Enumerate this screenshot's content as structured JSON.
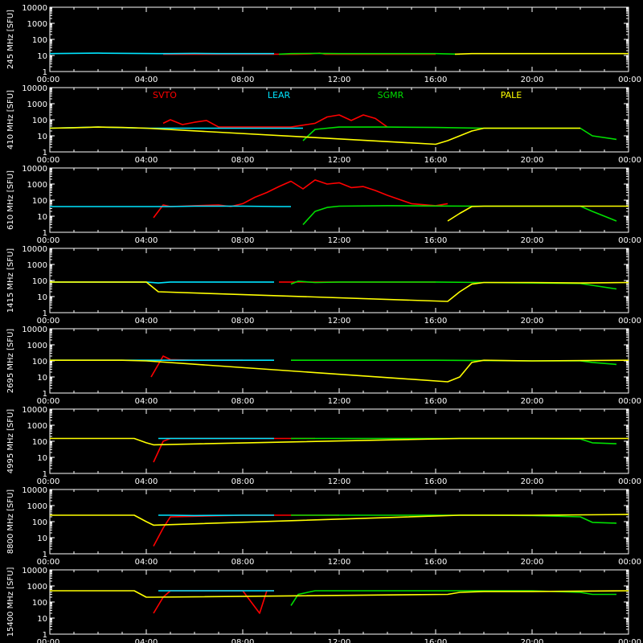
{
  "chart_data": [
    {
      "type": "line",
      "ylabel": "245 MHz  [SFU]",
      "ylog": true,
      "ylim": [
        1,
        10000
      ],
      "yticks": [
        "1",
        "10",
        "100",
        "1000",
        "10000"
      ],
      "xlim": [
        0,
        24
      ],
      "xticks": [
        "00:00",
        "04:00",
        "08:00",
        "12:00",
        "16:00",
        "20:00",
        "00:00"
      ],
      "series": [
        {
          "name": "",
          "color": "#ff0000",
          "x": [
            4.7,
            5.5,
            7,
            9.5,
            10.2,
            10.8,
            11.2,
            11.4,
            12,
            14,
            16
          ],
          "y": [
            12,
            12,
            12,
            12,
            12,
            12.5,
            14,
            12,
            12,
            12,
            12
          ]
        },
        {
          "name": "",
          "color": "#00e5ff",
          "x": [
            0,
            2,
            4.5,
            5,
            6,
            7,
            8,
            9,
            9.3
          ],
          "y": [
            13,
            14,
            13,
            13,
            13.5,
            13,
            13,
            13,
            13
          ]
        },
        {
          "name": "",
          "color": "#00e000",
          "x": [
            9.5,
            10,
            11,
            12,
            14,
            16,
            17
          ],
          "y": [
            12,
            13,
            13.5,
            13,
            13,
            13,
            12
          ]
        },
        {
          "name": "",
          "color": "#ffff00",
          "x": [
            16.8,
            17.5,
            18,
            20,
            22,
            23,
            24
          ],
          "y": [
            12,
            13,
            13,
            13,
            13,
            13,
            13
          ]
        }
      ]
    },
    {
      "type": "line",
      "ylabel": "410 MHz  [SFU]",
      "ylog": true,
      "ylim": [
        1,
        10000
      ],
      "yticks": [
        "1",
        "10",
        "100",
        "1000",
        "10000"
      ],
      "xlim": [
        0,
        24
      ],
      "xticks": [
        "00:00",
        "04:00",
        "08:00",
        "12:00",
        "16:00",
        "20:00",
        "00:00"
      ],
      "legend": [
        {
          "label": "SVTO",
          "color": "#ff0000"
        },
        {
          "label": "LEAR",
          "color": "#00e5ff"
        },
        {
          "label": "SGMR",
          "color": "#00e000"
        },
        {
          "label": "PALE",
          "color": "#ffff00"
        }
      ],
      "series": [
        {
          "name": "SVTO",
          "color": "#ff0000",
          "x": [
            4.7,
            5,
            5.5,
            6,
            6.5,
            7,
            8,
            9,
            10,
            11,
            11.5,
            12,
            12.5,
            13,
            13.5,
            14
          ],
          "y": [
            60,
            100,
            50,
            70,
            90,
            35,
            35,
            35,
            35,
            60,
            150,
            200,
            90,
            200,
            120,
            35
          ]
        },
        {
          "name": "LEAR",
          "color": "#00e5ff",
          "x": [
            0,
            2,
            4,
            4.5,
            5,
            6,
            8,
            9.5,
            10.5
          ],
          "y": [
            30,
            35,
            30,
            30,
            30,
            30,
            30,
            30,
            30
          ]
        },
        {
          "name": "SGMR",
          "color": "#00e000",
          "x": [
            10.5,
            11,
            11.5,
            12,
            14,
            16,
            18,
            20,
            22,
            22.5,
            23.5
          ],
          "y": [
            5,
            25,
            30,
            35,
            35,
            33,
            30,
            30,
            30,
            10,
            6
          ]
        },
        {
          "name": "PALE",
          "color": "#ffff00",
          "x": [
            0,
            1,
            2,
            3,
            4,
            16,
            16.5,
            17.5,
            18,
            20,
            22
          ],
          "y": [
            30,
            32,
            35,
            33,
            30,
            3,
            5,
            20,
            30,
            30,
            30
          ]
        }
      ]
    },
    {
      "type": "line",
      "ylabel": "610 MHz  [SFU]",
      "ylog": true,
      "ylim": [
        1,
        10000
      ],
      "yticks": [
        "1",
        "10",
        "100",
        "1000",
        "10000"
      ],
      "xlim": [
        0,
        24
      ],
      "xticks": [
        "00:00",
        "04:00",
        "08:00",
        "12:00",
        "16:00",
        "20:00",
        "00:00"
      ],
      "series": [
        {
          "name": "",
          "color": "#ff0000",
          "x": [
            4.3,
            4.7,
            5,
            6,
            7,
            7.5,
            8,
            8.5,
            9,
            9.5,
            10,
            10.5,
            11,
            11.5,
            12,
            12.5,
            13,
            13.5,
            14,
            15,
            16,
            16.5
          ],
          "y": [
            8,
            50,
            40,
            45,
            50,
            40,
            60,
            150,
            300,
            700,
            1500,
            500,
            1800,
            1000,
            1200,
            600,
            700,
            400,
            200,
            60,
            45,
            60
          ]
        },
        {
          "name": "",
          "color": "#00e5ff",
          "x": [
            0,
            2,
            4,
            5,
            6,
            8,
            9.5,
            10
          ],
          "y": [
            40,
            40,
            40,
            40,
            42,
            42,
            40,
            40
          ]
        },
        {
          "name": "",
          "color": "#00e000",
          "x": [
            10.5,
            11,
            11.5,
            12,
            14,
            16,
            18,
            20,
            22,
            22.5,
            23.5
          ],
          "y": [
            3,
            20,
            35,
            42,
            45,
            43,
            42,
            42,
            42,
            20,
            5
          ]
        },
        {
          "name": "",
          "color": "#ffff00",
          "x": [
            16.5,
            17,
            17.5,
            18,
            20,
            22,
            24
          ],
          "y": [
            5,
            15,
            40,
            42,
            42,
            42,
            42
          ]
        }
      ]
    },
    {
      "type": "line",
      "ylabel": "1415 MHz  [SFU]",
      "ylog": true,
      "ylim": [
        1,
        10000
      ],
      "yticks": [
        "1",
        "10",
        "100",
        "1000",
        "10000"
      ],
      "xlim": [
        0,
        24
      ],
      "xticks": [
        "00:00",
        "04:00",
        "08:00",
        "12:00",
        "16:00",
        "20:00",
        "00:00"
      ],
      "series": [
        {
          "name": "",
          "color": "#ff0000",
          "x": [
            9.5,
            10.5,
            12,
            14,
            16
          ],
          "y": [
            80,
            80,
            80,
            80,
            80
          ]
        },
        {
          "name": "",
          "color": "#00e5ff",
          "x": [
            0,
            2,
            4,
            4.5,
            5,
            6,
            8,
            9.3
          ],
          "y": [
            80,
            80,
            80,
            70,
            80,
            80,
            80,
            80
          ]
        },
        {
          "name": "",
          "color": "#00e000",
          "x": [
            10,
            10.3,
            11,
            12,
            14,
            16,
            18,
            20,
            22,
            22.5,
            23.5
          ],
          "y": [
            60,
            90,
            75,
            80,
            80,
            80,
            75,
            70,
            65,
            50,
            30
          ]
        },
        {
          "name": "",
          "color": "#ffff00",
          "x": [
            0,
            3,
            4,
            4.5,
            16.5,
            17,
            17.5,
            18,
            20,
            22,
            24
          ],
          "y": [
            80,
            80,
            80,
            20,
            5,
            20,
            60,
            75,
            75,
            70,
            75
          ]
        }
      ]
    },
    {
      "type": "line",
      "ylabel": "2695 MHz  [SFU]",
      "ylog": true,
      "ylim": [
        1,
        10000
      ],
      "yticks": [
        "1",
        "10",
        "100",
        "1000",
        "10000"
      ],
      "xlim": [
        0,
        24
      ],
      "xticks": [
        "00:00",
        "04:00",
        "08:00",
        "12:00",
        "16:00",
        "20:00",
        "00:00"
      ],
      "series": [
        {
          "name": "",
          "color": "#ff0000",
          "x": [
            4.2,
            4.5,
            4.7,
            5,
            6,
            7,
            8
          ],
          "y": [
            10,
            60,
            200,
            120,
            110,
            110,
            110
          ]
        },
        {
          "name": "",
          "color": "#00e5ff",
          "x": [
            0,
            2,
            4,
            5,
            6,
            8,
            9.3
          ],
          "y": [
            110,
            110,
            110,
            110,
            110,
            110,
            110
          ]
        },
        {
          "name": "",
          "color": "#00e000",
          "x": [
            10,
            11,
            12,
            14,
            16,
            18,
            20,
            22,
            22.5,
            23.5
          ],
          "y": [
            110,
            110,
            110,
            110,
            110,
            105,
            100,
            100,
            80,
            60
          ]
        },
        {
          "name": "",
          "color": "#ffff00",
          "x": [
            0,
            3,
            4,
            16.5,
            17,
            17.5,
            18,
            20,
            24
          ],
          "y": [
            110,
            110,
            100,
            5,
            10,
            80,
            110,
            100,
            110
          ]
        }
      ]
    },
    {
      "type": "line",
      "ylabel": "4995 MHz  [SFU]",
      "ylog": true,
      "ylim": [
        1,
        10000
      ],
      "yticks": [
        "1",
        "10",
        "100",
        "1000",
        "10000"
      ],
      "xlim": [
        0,
        24
      ],
      "xticks": [
        "00:00",
        "04:00",
        "08:00",
        "12:00",
        "16:00",
        "20:00",
        "00:00"
      ],
      "series": [
        {
          "name": "",
          "color": "#ff0000",
          "x": [
            4.3,
            4.7,
            5,
            8,
            10,
            11
          ],
          "y": [
            5,
            100,
            150,
            150,
            150,
            150
          ]
        },
        {
          "name": "",
          "color": "#00e5ff",
          "x": [
            4.5,
            5,
            6,
            8,
            9.3
          ],
          "y": [
            150,
            150,
            150,
            150,
            150
          ]
        },
        {
          "name": "",
          "color": "#00e000",
          "x": [
            10,
            11,
            12,
            14,
            16,
            18,
            20,
            22,
            22.5,
            23.5
          ],
          "y": [
            150,
            150,
            150,
            150,
            150,
            150,
            150,
            140,
            80,
            70
          ]
        },
        {
          "name": "",
          "color": "#ffff00",
          "x": [
            0,
            2,
            3.5,
            4,
            4.3,
            17,
            18,
            20,
            24
          ],
          "y": [
            150,
            150,
            150,
            80,
            60,
            150,
            150,
            150,
            150
          ]
        }
      ]
    },
    {
      "type": "line",
      "ylabel": "8800 MHz  [SFU]",
      "ylog": true,
      "ylim": [
        1,
        10000
      ],
      "yticks": [
        "1",
        "10",
        "100",
        "1000",
        "10000"
      ],
      "xlim": [
        0,
        24
      ],
      "xticks": [
        "00:00",
        "04:00",
        "08:00",
        "12:00",
        "16:00",
        "20:00",
        "00:00"
      ],
      "series": [
        {
          "name": "",
          "color": "#ff0000",
          "x": [
            4.3,
            4.7,
            5,
            8,
            10,
            12
          ],
          "y": [
            3,
            40,
            200,
            250,
            250,
            250
          ]
        },
        {
          "name": "",
          "color": "#00e5ff",
          "x": [
            4.5,
            5,
            6,
            8,
            9.3
          ],
          "y": [
            250,
            250,
            240,
            250,
            250
          ]
        },
        {
          "name": "",
          "color": "#00e000",
          "x": [
            10,
            11,
            12,
            14,
            16,
            18,
            20,
            22,
            22.5,
            23.5
          ],
          "y": [
            250,
            250,
            250,
            250,
            250,
            250,
            240,
            200,
            90,
            80
          ]
        },
        {
          "name": "",
          "color": "#ffff00",
          "x": [
            0,
            2,
            3.5,
            4,
            4.3,
            17,
            18,
            20,
            24
          ],
          "y": [
            250,
            250,
            250,
            100,
            60,
            250,
            250,
            250,
            280
          ]
        }
      ]
    },
    {
      "type": "line",
      "ylabel": "15400 MHz  [SFU]",
      "ylog": true,
      "ylim": [
        1,
        10000
      ],
      "yticks": [
        "1",
        "10",
        "100",
        "1000",
        "10000"
      ],
      "xlim": [
        0,
        24
      ],
      "xticks": [
        "00:00",
        "04:00",
        "08:00",
        "12:00",
        "16:00",
        "20:00",
        "00:00"
      ],
      "series": [
        {
          "name": "",
          "color": "#ff0000",
          "x": [
            4.3,
            4.7,
            5,
            8,
            8.7,
            9,
            9.3
          ],
          "y": [
            20,
            200,
            500,
            500,
            20,
            500,
            500
          ]
        },
        {
          "name": "",
          "color": "#00e5ff",
          "x": [
            4.5,
            5,
            6,
            8,
            9.3
          ],
          "y": [
            500,
            500,
            500,
            500,
            500
          ]
        },
        {
          "name": "",
          "color": "#00e000",
          "x": [
            10,
            10.3,
            11,
            12,
            14,
            16,
            18,
            20,
            22,
            22.5,
            23.5
          ],
          "y": [
            60,
            300,
            500,
            500,
            500,
            500,
            500,
            500,
            400,
            300,
            300
          ]
        },
        {
          "name": "",
          "color": "#ffff00",
          "x": [
            0,
            2,
            3.5,
            4,
            4.3,
            16.5,
            17,
            18,
            20,
            24
          ],
          "y": [
            500,
            500,
            500,
            200,
            200,
            300,
            400,
            450,
            450,
            500
          ]
        }
      ]
    }
  ]
}
